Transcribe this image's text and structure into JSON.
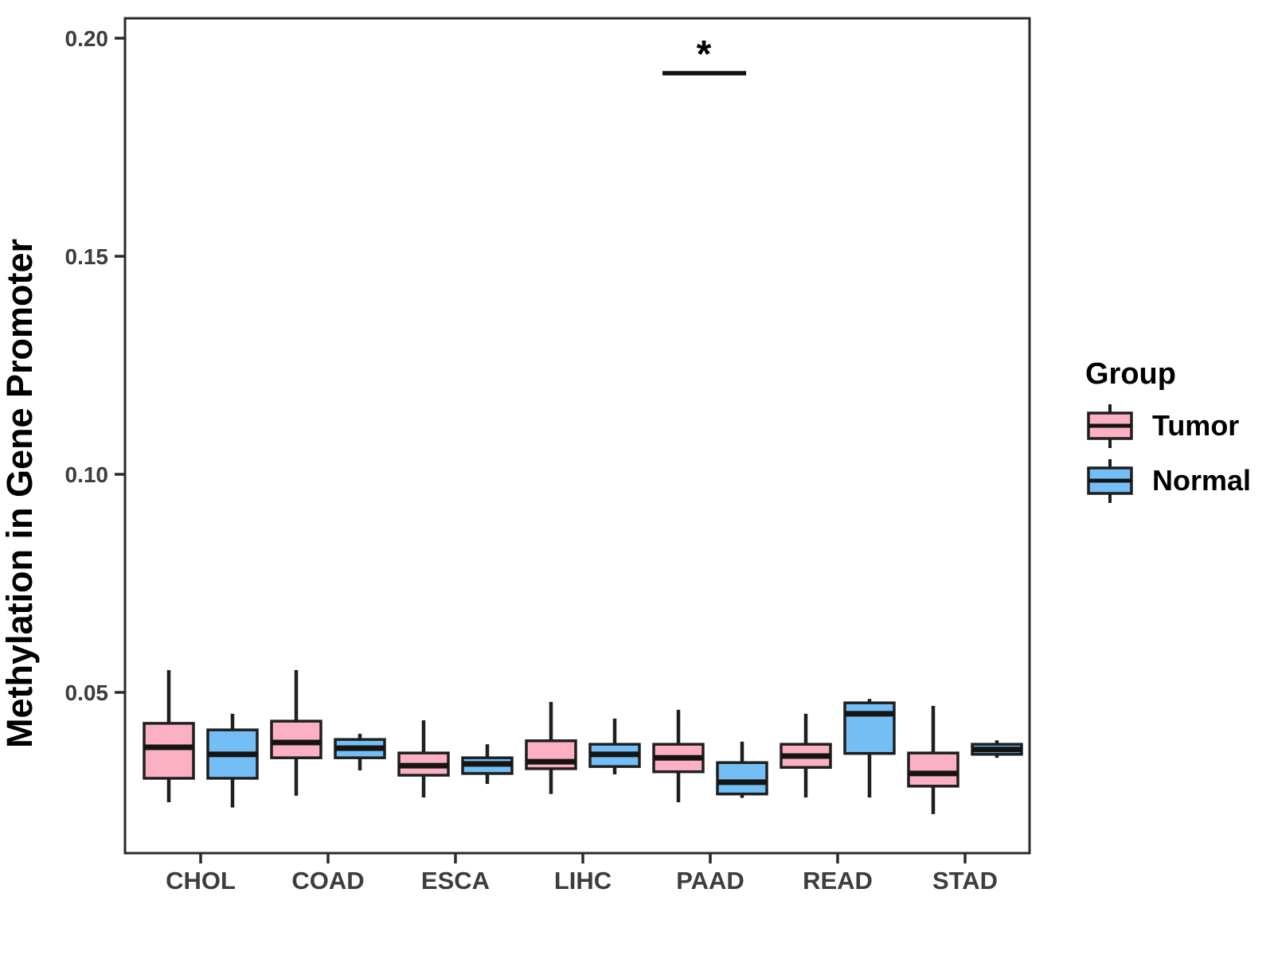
{
  "legend": {
    "title": "Group",
    "items": [
      {
        "label": "Tumor",
        "color": "#FBB0C3"
      },
      {
        "label": "Normal",
        "color": "#73BEF4"
      }
    ]
  },
  "significance": {
    "label": "*",
    "category": "PAAD",
    "between": [
      "Tumor",
      "Normal"
    ]
  },
  "chart_data": {
    "type": "boxplot",
    "title": "",
    "xlabel": "",
    "ylabel": "Methylation in Gene Promoter",
    "categories": [
      "CHOL",
      "COAD",
      "ESCA",
      "LIHC",
      "PAAD",
      "READ",
      "STAD"
    ],
    "y_ticks": [
      0.05,
      0.1,
      0.15,
      0.2
    ],
    "y_tick_labels": [
      "0.05",
      "0.10",
      "0.15",
      "0.20"
    ],
    "ylim": [
      0.012,
      0.205
    ],
    "grid": "off",
    "legend_position": "right",
    "series": [
      {
        "name": "Tumor",
        "color": "#FBB0C3",
        "boxes": [
          {
            "whisker_low": 0.0248,
            "q1": 0.0303,
            "median": 0.0374,
            "q3": 0.0429,
            "whisker_high": 0.0551
          },
          {
            "whisker_low": 0.0263,
            "q1": 0.035,
            "median": 0.0385,
            "q3": 0.0434,
            "whisker_high": 0.0551
          },
          {
            "whisker_low": 0.0259,
            "q1": 0.031,
            "median": 0.0332,
            "q3": 0.0361,
            "whisker_high": 0.0436
          },
          {
            "whisker_low": 0.0267,
            "q1": 0.0325,
            "median": 0.0341,
            "q3": 0.0389,
            "whisker_high": 0.0478
          },
          {
            "whisker_low": 0.0248,
            "q1": 0.0318,
            "median": 0.035,
            "q3": 0.0381,
            "whisker_high": 0.046
          },
          {
            "whisker_low": 0.0259,
            "q1": 0.0328,
            "median": 0.0354,
            "q3": 0.0381,
            "whisker_high": 0.0451
          },
          {
            "whisker_low": 0.0221,
            "q1": 0.0285,
            "median": 0.0314,
            "q3": 0.0361,
            "whisker_high": 0.0469
          }
        ]
      },
      {
        "name": "Normal",
        "color": "#73BEF4",
        "boxes": [
          {
            "whisker_low": 0.0236,
            "q1": 0.0303,
            "median": 0.0358,
            "q3": 0.0414,
            "whisker_high": 0.0451
          },
          {
            "whisker_low": 0.0321,
            "q1": 0.035,
            "median": 0.0372,
            "q3": 0.0392,
            "whisker_high": 0.0405
          },
          {
            "whisker_low": 0.029,
            "q1": 0.0314,
            "median": 0.0336,
            "q3": 0.035,
            "whisker_high": 0.0381
          },
          {
            "whisker_low": 0.0312,
            "q1": 0.033,
            "median": 0.0358,
            "q3": 0.0381,
            "whisker_high": 0.044
          },
          {
            "whisker_low": 0.0258,
            "q1": 0.0267,
            "median": 0.0294,
            "q3": 0.0339,
            "whisker_high": 0.0387
          },
          {
            "whisker_low": 0.0259,
            "q1": 0.036,
            "median": 0.0451,
            "q3": 0.0476,
            "whisker_high": 0.0485
          },
          {
            "whisker_low": 0.035,
            "q1": 0.0358,
            "median": 0.0369,
            "q3": 0.0381,
            "whisker_high": 0.039
          }
        ]
      }
    ],
    "style": {
      "box_stroke": "#1f1f1f",
      "median_color": "#141414",
      "axis_text_color": "#3d3d3d",
      "panel_border_color": "#2b2b2b"
    }
  }
}
